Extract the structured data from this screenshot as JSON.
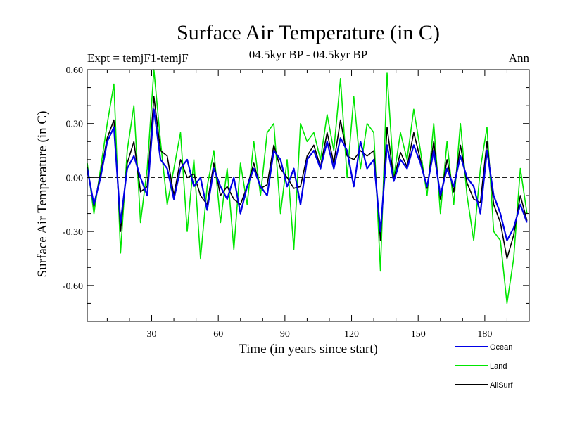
{
  "chart_data": {
    "type": "line",
    "title": "Surface Air Temperature (in C)",
    "subtitle": "04.5kyr BP - 04.5kyr BP",
    "left_label": "Expt = temjF1-temjF",
    "right_label": "Ann",
    "xlabel": "Time (in years since start)",
    "ylabel": "Surface Air Temperature (in C)",
    "xlim": [
      1,
      200
    ],
    "ylim": [
      -0.8,
      0.6
    ],
    "xticks": [
      30,
      60,
      90,
      120,
      150,
      180
    ],
    "xtick_labels": [
      "30",
      "60",
      "90",
      "120",
      "150",
      "180"
    ],
    "yticks": [
      0.6,
      0.3,
      0.0,
      -0.3,
      -0.6
    ],
    "ytick_labels": [
      "0.60",
      "0.30",
      "0.00",
      "-0.30",
      "-0.60"
    ],
    "reference_line": 0.0,
    "legend_position": "bottom-right",
    "x": [
      1,
      4,
      7,
      10,
      13,
      16,
      19,
      22,
      25,
      28,
      31,
      34,
      37,
      40,
      43,
      46,
      49,
      52,
      55,
      58,
      61,
      64,
      67,
      70,
      73,
      76,
      79,
      82,
      85,
      88,
      91,
      94,
      97,
      100,
      103,
      106,
      109,
      112,
      115,
      118,
      121,
      124,
      127,
      130,
      133,
      136,
      139,
      142,
      145,
      148,
      151,
      154,
      157,
      160,
      163,
      166,
      169,
      172,
      175,
      178,
      181,
      184,
      187,
      190,
      193,
      196,
      199
    ],
    "series": [
      {
        "name": "Ocean",
        "color": "#0000e6",
        "values": [
          0.05,
          -0.15,
          0.0,
          0.2,
          0.28,
          -0.25,
          0.05,
          0.12,
          0.0,
          -0.1,
          0.38,
          0.1,
          0.05,
          -0.12,
          0.05,
          0.1,
          -0.05,
          0.0,
          -0.18,
          0.05,
          -0.05,
          -0.12,
          0.0,
          -0.2,
          -0.05,
          0.05,
          -0.05,
          -0.1,
          0.15,
          0.1,
          -0.05,
          0.05,
          -0.15,
          0.1,
          0.15,
          0.05,
          0.2,
          0.05,
          0.22,
          0.15,
          -0.05,
          0.2,
          0.05,
          0.1,
          -0.3,
          0.18,
          -0.02,
          0.1,
          0.05,
          0.18,
          0.08,
          -0.05,
          0.15,
          -0.1,
          0.05,
          -0.05,
          0.12,
          0.0,
          -0.05,
          -0.2,
          0.15,
          -0.1,
          -0.2,
          -0.35,
          -0.28,
          -0.15,
          -0.25
        ]
      },
      {
        "name": "Land",
        "color": "#00e600",
        "values": [
          0.08,
          -0.2,
          0.05,
          0.3,
          0.52,
          -0.42,
          0.15,
          0.4,
          -0.25,
          0.05,
          0.6,
          0.2,
          -0.15,
          0.05,
          0.25,
          -0.3,
          0.1,
          -0.45,
          -0.05,
          0.15,
          -0.25,
          0.05,
          -0.4,
          0.08,
          -0.15,
          0.2,
          -0.1,
          0.25,
          0.3,
          -0.2,
          0.1,
          -0.4,
          0.3,
          0.2,
          0.25,
          0.1,
          0.35,
          0.15,
          0.55,
          0.0,
          0.45,
          0.05,
          0.3,
          0.25,
          -0.52,
          0.58,
          0.0,
          0.25,
          0.1,
          0.38,
          0.15,
          -0.1,
          0.3,
          -0.2,
          0.2,
          -0.15,
          0.3,
          -0.1,
          -0.35,
          0.05,
          0.28,
          -0.3,
          -0.35,
          -0.7,
          -0.45,
          0.05,
          -0.2
        ]
      },
      {
        "name": "AllSurf",
        "color": "#000000",
        "values": [
          0.06,
          -0.16,
          0.02,
          0.22,
          0.32,
          -0.3,
          0.08,
          0.2,
          -0.08,
          -0.05,
          0.45,
          0.15,
          0.12,
          -0.1,
          0.1,
          0.0,
          0.02,
          -0.1,
          -0.15,
          0.08,
          -0.1,
          -0.05,
          -0.12,
          -0.15,
          -0.05,
          0.08,
          -0.06,
          -0.04,
          0.18,
          0.05,
          0.0,
          -0.06,
          -0.05,
          0.12,
          0.18,
          0.06,
          0.25,
          0.08,
          0.32,
          0.12,
          0.1,
          0.15,
          0.12,
          0.15,
          -0.35,
          0.28,
          -0.01,
          0.14,
          0.06,
          0.25,
          0.1,
          -0.06,
          0.2,
          -0.12,
          0.1,
          -0.08,
          0.18,
          -0.03,
          -0.12,
          -0.14,
          0.2,
          -0.15,
          -0.25,
          -0.45,
          -0.32,
          -0.1,
          -0.24
        ]
      }
    ]
  }
}
